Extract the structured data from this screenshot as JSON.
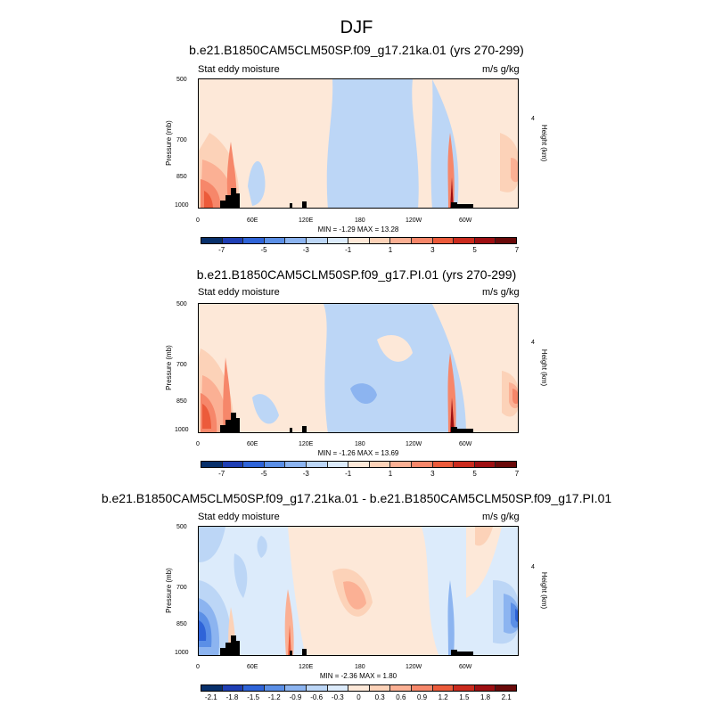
{
  "main_title": "DJF",
  "colors": [
    "#08306b",
    "#1f3fb4",
    "#2f64d8",
    "#5b8fe6",
    "#8cb4f0",
    "#bcd6f6",
    "#dcebfb",
    "#fde8d8",
    "#fcd2b8",
    "#fbb094",
    "#f6876a",
    "#ec5b3b",
    "#cb2b1e",
    "#9e0f12",
    "#6a0a0a"
  ],
  "panels": [
    {
      "title": "b.e21.B1850CAM5CLM50SP.f09_g17.21ka.01 (yrs 270-299)",
      "left_label": "Stat eddy moisture",
      "right_label": "m/s g/kg",
      "minmax": "MIN =  -1.29  MAX =  13.28",
      "cbar_labels": [
        "-7",
        "-5",
        "-3",
        "-1",
        "1",
        "3",
        "5",
        "7"
      ]
    },
    {
      "title": "b.e21.B1850CAM5CLM50SP.f09_g17.PI.01 (yrs 270-299)",
      "left_label": "Stat eddy moisture",
      "right_label": "m/s g/kg",
      "minmax": "MIN =  -1.26  MAX =  13.69",
      "cbar_labels": [
        "-7",
        "-5",
        "-3",
        "-1",
        "1",
        "3",
        "5",
        "7"
      ]
    },
    {
      "title": "b.e21.B1850CAM5CLM50SP.f09_g17.21ka.01 - b.e21.B1850CAM5CLM50SP.f09_g17.PI.01",
      "left_label": "Stat eddy moisture",
      "right_label": "m/s g/kg",
      "minmax": "MIN =  -2.36  MAX =  1.80",
      "cbar_labels": [
        "-2.1",
        "-1.8",
        "-1.5",
        "-1.2",
        "-0.9",
        "-0.6",
        "-0.3",
        "0",
        "0.3",
        "0.6",
        "0.9",
        "1.2",
        "1.5",
        "1.8",
        "2.1"
      ]
    }
  ],
  "chart_data": [
    {
      "type": "heatmap",
      "title": "b.e21.B1850CAM5CLM50SP.f09_g17.21ka.01 (yrs 270-299)",
      "xlabel": "",
      "ylabel": "Pressure (mb)",
      "y2label": "Height (km)",
      "x_ticks": [
        "0",
        "60E",
        "120E",
        "180",
        "120W",
        "60W"
      ],
      "y_ticks": [
        "500",
        "700",
        "850",
        "1000"
      ],
      "y2_ticks": [
        "4"
      ],
      "xlim": [
        0,
        360
      ],
      "ylim": [
        1000,
        500
      ],
      "levels": [
        -7,
        -6,
        -5,
        -4,
        -3,
        -2,
        -1,
        0,
        1,
        2,
        3,
        4,
        5,
        6,
        7
      ],
      "min": -1.29,
      "max": 13.28
    },
    {
      "type": "heatmap",
      "title": "b.e21.B1850CAM5CLM50SP.f09_g17.PI.01 (yrs 270-299)",
      "xlabel": "",
      "ylabel": "Pressure (mb)",
      "y2label": "Height (km)",
      "x_ticks": [
        "0",
        "60E",
        "120E",
        "180",
        "120W",
        "60W"
      ],
      "y_ticks": [
        "500",
        "700",
        "850",
        "1000"
      ],
      "y2_ticks": [
        "4"
      ],
      "xlim": [
        0,
        360
      ],
      "ylim": [
        1000,
        500
      ],
      "levels": [
        -7,
        -6,
        -5,
        -4,
        -3,
        -2,
        -1,
        0,
        1,
        2,
        3,
        4,
        5,
        6,
        7
      ],
      "min": -1.26,
      "max": 13.69
    },
    {
      "type": "heatmap",
      "title": "b.e21.B1850CAM5CLM50SP.f09_g17.21ka.01 - b.e21.B1850CAM5CLM50SP.f09_g17.PI.01",
      "xlabel": "",
      "ylabel": "Pressure (mb)",
      "y2label": "Height (km)",
      "x_ticks": [
        "0",
        "60E",
        "120E",
        "180",
        "120W",
        "60W"
      ],
      "y_ticks": [
        "500",
        "700",
        "850",
        "1000"
      ],
      "y2_ticks": [
        "4"
      ],
      "xlim": [
        0,
        360
      ],
      "ylim": [
        1000,
        500
      ],
      "levels": [
        -2.1,
        -1.8,
        -1.5,
        -1.2,
        -0.9,
        -0.6,
        -0.3,
        0,
        0.3,
        0.6,
        0.9,
        1.2,
        1.5,
        1.8,
        2.1
      ],
      "min": -2.36,
      "max": 1.8
    }
  ]
}
